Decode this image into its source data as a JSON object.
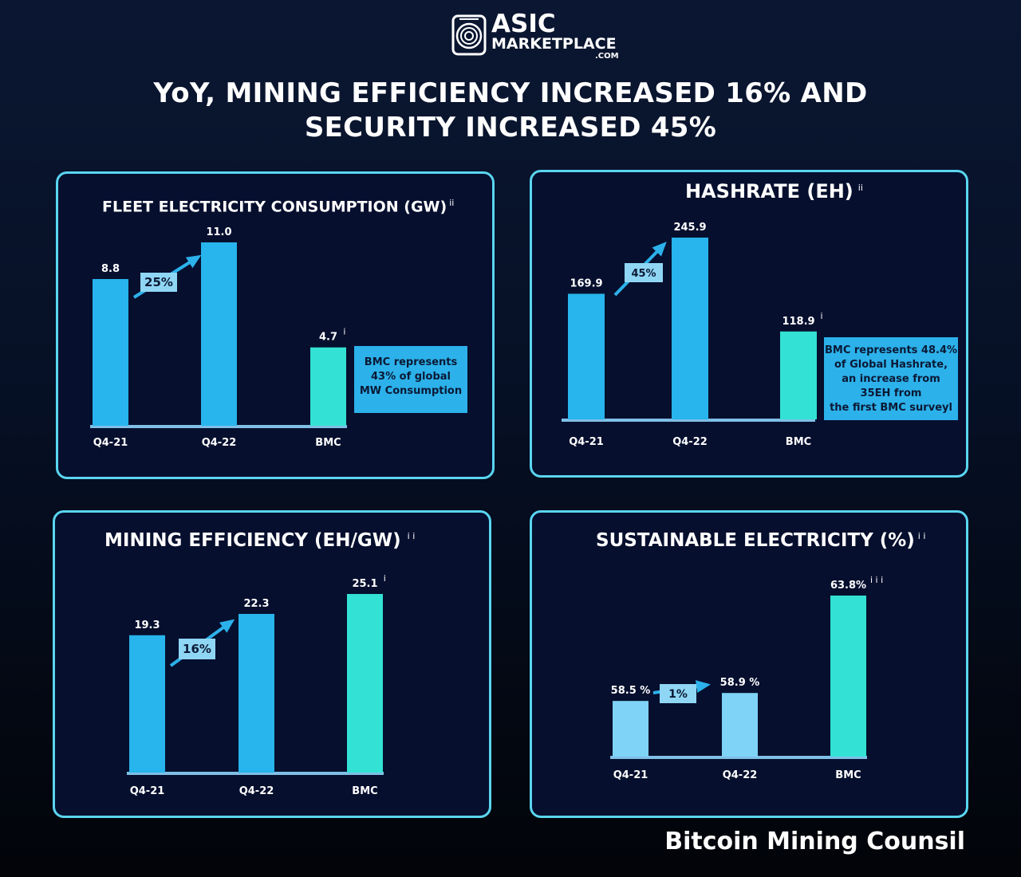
{
  "logo": {
    "line1": "ASIC",
    "line2": "MARKETPLACE",
    "line3": ".COM"
  },
  "headline": {
    "line1": "YoY, MINING EFFICIENCY INCREASED 16% AND",
    "line2": "SECURITY INCREASED 45%"
  },
  "footer": "Bitcoin Mining Counsil",
  "colors": {
    "bar": "#28b4ec",
    "bmc": "#33e2d4",
    "light_bar": "#7fd3f7",
    "border": "#5ad5f0",
    "note": "#2cb1ea"
  },
  "chart_data": [
    {
      "type": "bar",
      "title": "FLEET ELECTRICITY CONSUMPTION (GW)",
      "title_sup": "ii",
      "categories": [
        "Q4-21",
        "Q4-22",
        "BMC"
      ],
      "values": [
        8.8,
        11.0,
        4.7
      ],
      "value_labels": [
        "8.8",
        "11.0",
        "4.7"
      ],
      "label_sups": [
        "",
        "",
        "i"
      ],
      "ylim": [
        0,
        11.0
      ],
      "growth_label": "25%",
      "note": [
        "BMC represents",
        "43% of global",
        "MW Consumption"
      ]
    },
    {
      "type": "bar",
      "title": "HASHRATE (EH)",
      "title_sup": "ii",
      "categories": [
        "Q4-21",
        "Q4-22",
        "BMC"
      ],
      "values": [
        169.9,
        245.9,
        118.9
      ],
      "value_labels": [
        "169.9",
        "245.9",
        "118.9"
      ],
      "label_sups": [
        "",
        "",
        "i"
      ],
      "ylim": [
        0,
        245.9
      ],
      "growth_label": "45%",
      "note": [
        "BMC represents 48.4%",
        "of Global Hashrate,",
        "an increase from",
        "35EH from",
        "the first BMC surveyl"
      ]
    },
    {
      "type": "bar",
      "title": "MINING EFFICIENCY (EH/GW)",
      "title_sup": "i i",
      "categories": [
        "Q4-21",
        "Q4-22",
        "BMC"
      ],
      "values": [
        19.3,
        22.3,
        25.1
      ],
      "value_labels": [
        "19.3",
        "22.3",
        "25.1"
      ],
      "label_sups": [
        "",
        "",
        "i"
      ],
      "ylim": [
        0,
        25.1
      ],
      "growth_label": "16%"
    },
    {
      "type": "bar",
      "title": "SUSTAINABLE ELECTRICITY (%)",
      "title_sup": "i i",
      "categories": [
        "Q4-21",
        "Q4-22",
        "BMC"
      ],
      "values": [
        58.5,
        58.9,
        63.8
      ],
      "value_labels": [
        "58.5 %",
        "58.9 %",
        "63.8%"
      ],
      "label_sups": [
        "",
        "",
        "i i i"
      ],
      "ylim": [
        55.7,
        63.8
      ],
      "growth_label": "1%"
    }
  ]
}
